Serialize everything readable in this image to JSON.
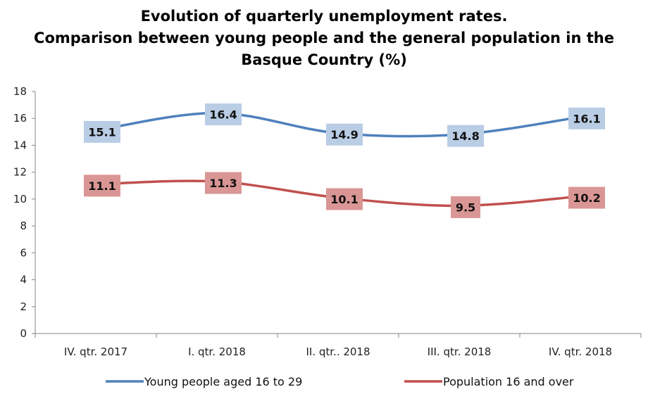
{
  "chart_data": {
    "type": "line",
    "title_lines": [
      "Evolution of quarterly unemployment rates.",
      "Comparison between young people and the general population in the",
      "Basque Country (%)"
    ],
    "categories": [
      "IV. qtr. 2017",
      "I. qtr. 2018",
      "II. qtr.. 2018",
      "III. qtr. 2018",
      "IV. qtr. 2018"
    ],
    "y_ticks": [
      "0",
      "2",
      "4",
      "6",
      "8",
      "10",
      "12",
      "14",
      "16",
      "18"
    ],
    "ylim": [
      0,
      18
    ],
    "grid": false,
    "smooth": true,
    "legend_position": "bottom",
    "series": [
      {
        "name": "Young people aged 16 to 29",
        "values": [
          15.1,
          16.4,
          14.9,
          14.8,
          16.1
        ],
        "labels": [
          "15.1",
          "16.4",
          "14.9",
          "14.8",
          "16.1"
        ],
        "color": "#4F81BD",
        "label_bg": "#B9CDE5"
      },
      {
        "name": "Population 16 and over",
        "values": [
          11.1,
          11.3,
          10.1,
          9.5,
          10.2
        ],
        "labels": [
          "11.1",
          "11.3",
          "10.1",
          "9.5",
          "10.2"
        ],
        "color": "#C0504D",
        "label_bg": "#D99694"
      }
    ]
  }
}
